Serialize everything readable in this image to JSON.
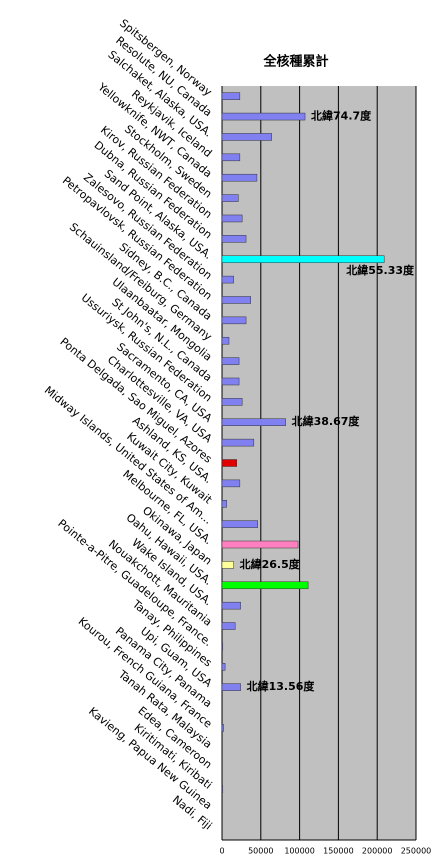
{
  "chart_data": {
    "type": "hbar",
    "title": "全核種累計",
    "categories": [
      "Spitsbergen, Norway",
      "Resolute, NU, Canada",
      "Salchaket, Alaska, USA.",
      "Reykjavik, Iceland",
      "Yellowknife, NWT, Canada",
      "Stockholm, Sweden",
      "Kirov, Russian Federation",
      "Dubna, Russian Federation",
      "Sand Point, Alaska, USA.",
      "Zalesovo, Russian Federation",
      "Petropavlovsk, Russian Federation",
      "Sidney, B.C., Canada",
      "Schauinsland/Freiburg, Germany",
      "Ulaanbaatar, Mongolia",
      "St John's, N.L., Canada",
      "Ussuriysk, Russian Federation",
      "Sacramento, CA, USA",
      "Charlottesville, VA, USA",
      "Ponta Delgada, Sao Miguel, Azores",
      "Ashland, KS, USA.",
      "Kuwait City, Kuwait",
      "Midway Islands, United States of Am...",
      "Melbourne, FL, USA.",
      "Okinawa, Japan",
      "Oahu, Hawaii, USA.",
      "Wake Island, USA.",
      "Nouakchott, Mauritania",
      "Pointe-a-Pitre, Guadeloupe, France.",
      "Tanay, Philippines",
      "Upi, Guam, USA",
      "Panama City, Panama",
      "Kourou, French Guiana, France",
      "Tanah Rata, Malaysia",
      "Edea, Cameroon",
      "Kiritimati, Kiribati",
      "Kavieng, Papua New Guinea",
      "Nadi, Fiji"
    ],
    "values": [
      23000,
      107000,
      64000,
      23000,
      45000,
      21000,
      26000,
      31000,
      209000,
      15000,
      37000,
      31000,
      9000,
      22000,
      22000,
      26000,
      82000,
      41000,
      19000,
      23000,
      6000,
      46000,
      98000,
      15000,
      111000,
      24000,
      17000,
      1000,
      4000,
      24000,
      0,
      2000,
      0,
      0,
      1000,
      0,
      0
    ],
    "colors": [
      "#8080f0",
      "#8080f0",
      "#8080f0",
      "#8080f0",
      "#8080f0",
      "#8080f0",
      "#8080f0",
      "#8080f0",
      "#00ffff",
      "#8080f0",
      "#8080f0",
      "#8080f0",
      "#8080f0",
      "#8080f0",
      "#8080f0",
      "#8080f0",
      "#8080f0",
      "#8080f0",
      "#e00000",
      "#8080f0",
      "#8080f0",
      "#8080f0",
      "#ff80c0",
      "#ffff99",
      "#00ff00",
      "#8080f0",
      "#8080f0",
      "#8080f0",
      "#8080f0",
      "#8080f0",
      "#8080f0",
      "#8080f0",
      "#8080f0",
      "#8080f0",
      "#8080f0",
      "#8080f0",
      "#8080f0"
    ],
    "annotations": [
      {
        "text": "北緯74.7度",
        "index": 1
      },
      {
        "text": "北緯55.33度",
        "index": 8
      },
      {
        "text": "北緯38.67度",
        "index": 16
      },
      {
        "text": "北緯26.5度",
        "index": 23
      },
      {
        "text": "北緯13.56度",
        "index": 29
      }
    ],
    "xlim": [
      0,
      250000
    ],
    "xticks": [
      0,
      50000,
      100000,
      150000,
      200000,
      250000
    ],
    "grid": true
  }
}
